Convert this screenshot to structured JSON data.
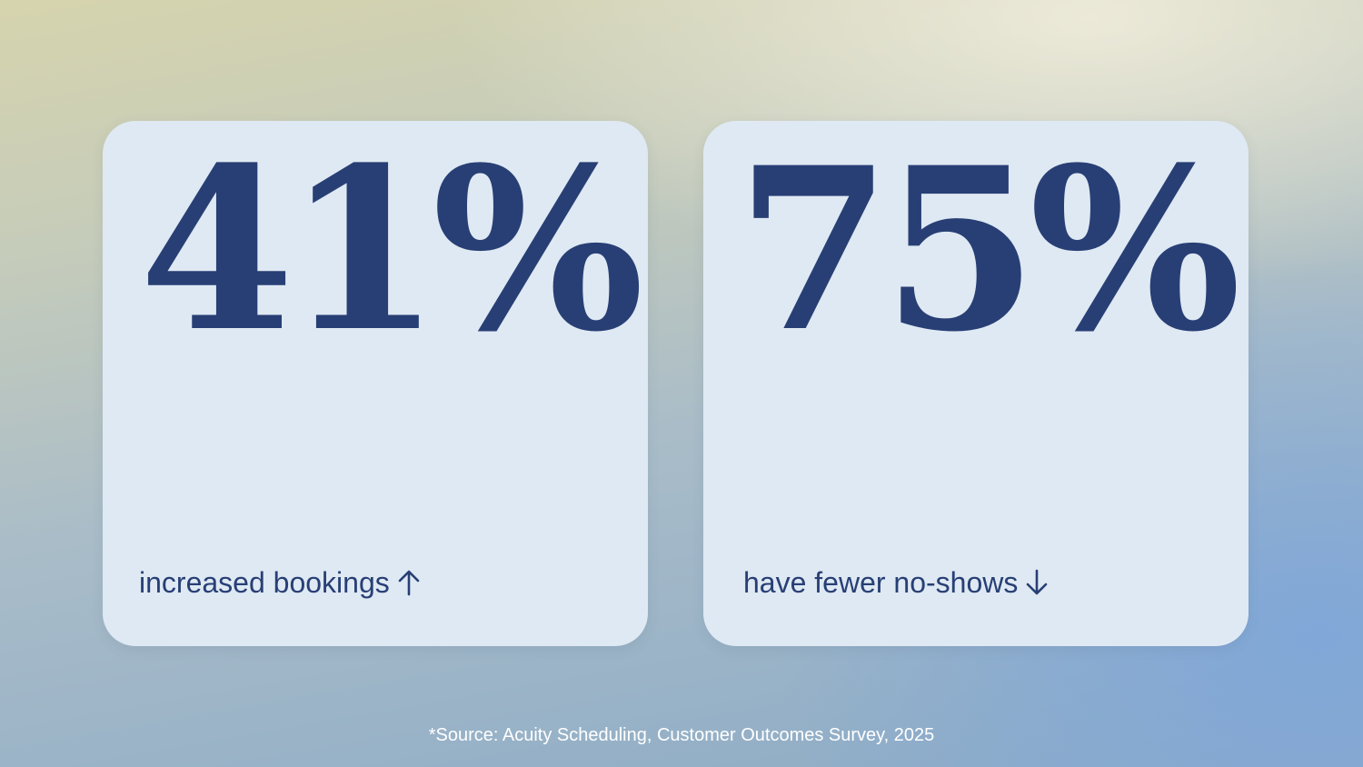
{
  "stats": [
    {
      "value": "41%",
      "label": "increased bookings",
      "trend_icon": "arrow-up-icon"
    },
    {
      "value": "75%",
      "label": "have fewer no-shows",
      "trend_icon": "arrow-down-icon"
    }
  ],
  "footnote": "*Source: Acuity Scheduling, Customer Outcomes Survey, 2025",
  "colors": {
    "text_primary": "#283f75",
    "card_background": "#dfe9f3",
    "footnote_text": "#ffffff"
  }
}
